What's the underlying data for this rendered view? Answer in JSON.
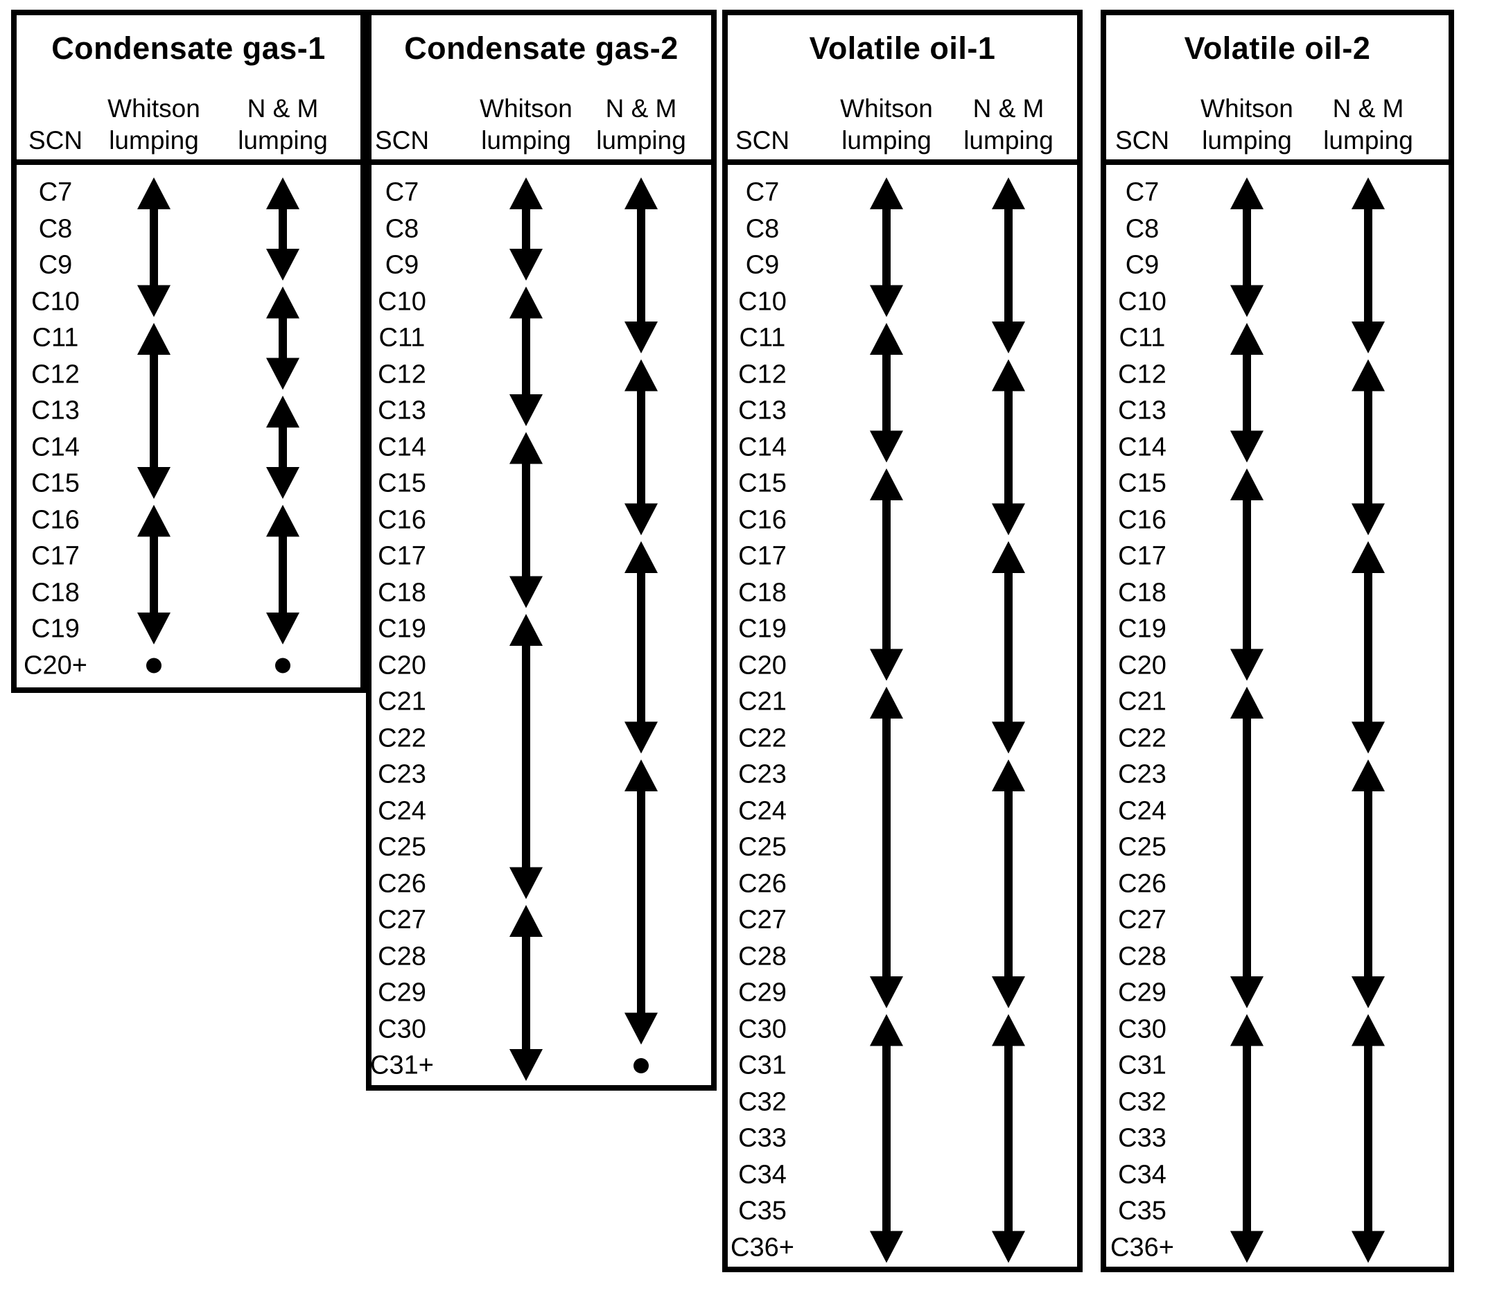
{
  "figure": {
    "colors": {
      "ink": "#000000",
      "paper": "#ffffff"
    },
    "panels": [
      {
        "id": "condensate-gas-1",
        "title": "Condensate gas-1",
        "columns": {
          "scn": "SCN",
          "whitson": [
            "Whitson",
            "lumping"
          ],
          "nm": [
            "N & M",
            "lumping"
          ]
        },
        "rows": [
          "C7",
          "C8",
          "C9",
          "C10",
          "C11",
          "C12",
          "C13",
          "C14",
          "C15",
          "C16",
          "C17",
          "C18",
          "C19",
          "C20+"
        ],
        "whitson_arrows": [
          [
            "C7",
            "C10"
          ],
          [
            "C11",
            "C15"
          ],
          [
            "C16",
            "C19"
          ]
        ],
        "whitson_dots": [
          "C20+"
        ],
        "nm_arrows": [
          [
            "C7",
            "C9"
          ],
          [
            "C10",
            "C12"
          ],
          [
            "C13",
            "C15"
          ],
          [
            "C16",
            "C19"
          ]
        ],
        "nm_dots": [
          "C20+"
        ]
      },
      {
        "id": "condensate-gas-2",
        "title": "Condensate gas-2",
        "columns": {
          "scn": "SCN",
          "whitson": [
            "Whitson",
            "lumping"
          ],
          "nm": [
            "N & M",
            "lumping"
          ]
        },
        "rows": [
          "C7",
          "C8",
          "C9",
          "C10",
          "C11",
          "C12",
          "C13",
          "C14",
          "C15",
          "C16",
          "C17",
          "C18",
          "C19",
          "C20",
          "C21",
          "C22",
          "C23",
          "C24",
          "C25",
          "C26",
          "C27",
          "C28",
          "C29",
          "C30",
          "C31+"
        ],
        "whitson_arrows": [
          [
            "C7",
            "C9"
          ],
          [
            "C10",
            "C13"
          ],
          [
            "C14",
            "C18"
          ],
          [
            "C19",
            "C26"
          ],
          [
            "C27",
            "C31+"
          ]
        ],
        "whitson_dots": [],
        "nm_arrows": [
          [
            "C7",
            "C11"
          ],
          [
            "C12",
            "C16"
          ],
          [
            "C17",
            "C22"
          ],
          [
            "C23",
            "C30"
          ]
        ],
        "nm_dots": [
          "C31+"
        ]
      },
      {
        "id": "volatile-oil-1",
        "title": "Volatile oil-1",
        "columns": {
          "scn": "SCN",
          "whitson": [
            "Whitson",
            "lumping"
          ],
          "nm": [
            "N & M",
            "lumping"
          ]
        },
        "rows": [
          "C7",
          "C8",
          "C9",
          "C10",
          "C11",
          "C12",
          "C13",
          "C14",
          "C15",
          "C16",
          "C17",
          "C18",
          "C19",
          "C20",
          "C21",
          "C22",
          "C23",
          "C24",
          "C25",
          "C26",
          "C27",
          "C28",
          "C29",
          "C30",
          "C31",
          "C32",
          "C33",
          "C34",
          "C35",
          "C36+"
        ],
        "whitson_arrows": [
          [
            "C7",
            "C10"
          ],
          [
            "C11",
            "C14"
          ],
          [
            "C15",
            "C20"
          ],
          [
            "C21",
            "C29"
          ],
          [
            "C30",
            "C36+"
          ]
        ],
        "whitson_dots": [],
        "nm_arrows": [
          [
            "C7",
            "C11"
          ],
          [
            "C12",
            "C16"
          ],
          [
            "C17",
            "C22"
          ],
          [
            "C23",
            "C29"
          ],
          [
            "C30",
            "C36+"
          ]
        ],
        "nm_dots": []
      },
      {
        "id": "volatile-oil-2",
        "title": "Volatile oil-2",
        "columns": {
          "scn": "SCN",
          "whitson": [
            "Whitson",
            "lumping"
          ],
          "nm": [
            "N & M",
            "lumping"
          ]
        },
        "rows": [
          "C7",
          "C8",
          "C9",
          "C10",
          "C11",
          "C12",
          "C13",
          "C14",
          "C15",
          "C16",
          "C17",
          "C18",
          "C19",
          "C20",
          "C21",
          "C22",
          "C23",
          "C24",
          "C25",
          "C26",
          "C27",
          "C28",
          "C29",
          "C30",
          "C31",
          "C32",
          "C33",
          "C34",
          "C35",
          "C36+"
        ],
        "whitson_arrows": [
          [
            "C7",
            "C10"
          ],
          [
            "C11",
            "C14"
          ],
          [
            "C15",
            "C20"
          ],
          [
            "C21",
            "C29"
          ],
          [
            "C30",
            "C36+"
          ]
        ],
        "whitson_dots": [],
        "nm_arrows": [
          [
            "C7",
            "C11"
          ],
          [
            "C12",
            "C16"
          ],
          [
            "C17",
            "C22"
          ],
          [
            "C23",
            "C29"
          ],
          [
            "C30",
            "C36+"
          ]
        ],
        "nm_dots": []
      }
    ]
  }
}
